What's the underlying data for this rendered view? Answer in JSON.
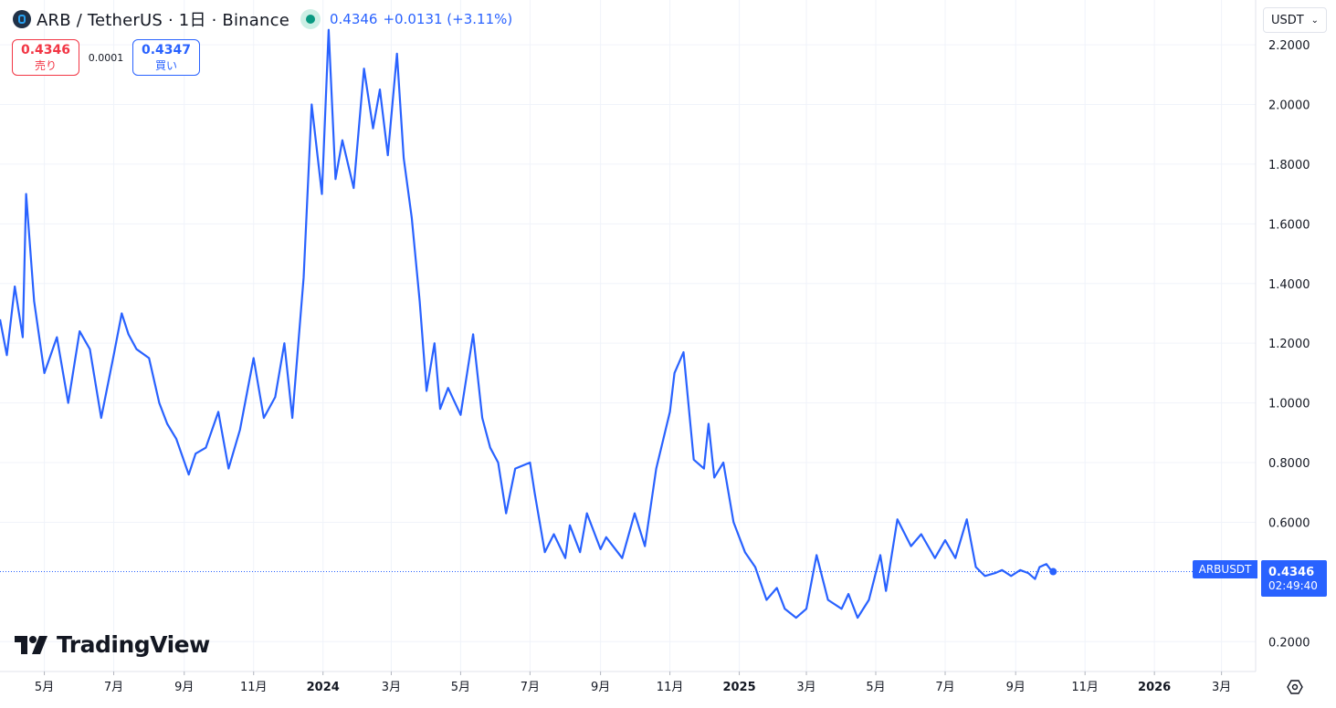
{
  "header": {
    "title": "ARB / TetherUS · 1日 · Binance",
    "price": "0.4346",
    "change": "+0.0131 (+3.11%)"
  },
  "trade": {
    "sell_price": "0.4346",
    "sell_label": "売り",
    "spread": "0.0001",
    "buy_price": "0.4347",
    "buy_label": "買い"
  },
  "currency": {
    "label": "USDT"
  },
  "logo": {
    "text": "TradingView"
  },
  "price_tag": {
    "symbol": "ARBUSDT",
    "price": "0.4346",
    "countdown": "02:49:40"
  },
  "colors": {
    "line": "#2962ff",
    "grid": "#f0f3fa",
    "dotted": "#2962ff"
  },
  "icons": {
    "symbol": "arbitrum-logo-icon",
    "status": "market-open-icon",
    "settings": "settings-icon",
    "chevron": "chevron-down-icon"
  },
  "chart_data": {
    "type": "line",
    "series": [
      {
        "name": "ARBUSDT",
        "x": [
          "2023-03-23",
          "2023-03-29",
          "2023-04-05",
          "2023-04-12",
          "2023-04-15",
          "2023-04-22",
          "2023-05-01",
          "2023-05-12",
          "2023-05-22",
          "2023-06-01",
          "2023-06-10",
          "2023-06-20",
          "2023-07-01",
          "2023-07-08",
          "2023-07-14",
          "2023-07-21",
          "2023-08-01",
          "2023-08-10",
          "2023-08-17",
          "2023-08-25",
          "2023-09-05",
          "2023-09-11",
          "2023-09-20",
          "2023-10-01",
          "2023-10-10",
          "2023-10-20",
          "2023-11-01",
          "2023-11-10",
          "2023-11-20",
          "2023-11-28",
          "2023-12-05",
          "2023-12-15",
          "2023-12-22",
          "2023-12-31",
          "2024-01-06",
          "2024-01-12",
          "2024-01-18",
          "2024-01-28",
          "2024-02-06",
          "2024-02-14",
          "2024-02-20",
          "2024-02-27",
          "2024-03-06",
          "2024-03-12",
          "2024-03-19",
          "2024-03-26",
          "2024-04-01",
          "2024-04-08",
          "2024-04-13",
          "2024-04-20",
          "2024-05-01",
          "2024-05-12",
          "2024-05-20",
          "2024-05-27",
          "2024-06-03",
          "2024-06-10",
          "2024-06-18",
          "2024-07-01",
          "2024-07-05",
          "2024-07-14",
          "2024-07-22",
          "2024-08-01",
          "2024-08-05",
          "2024-08-14",
          "2024-08-20",
          "2024-09-01",
          "2024-09-06",
          "2024-09-20",
          "2024-10-01",
          "2024-10-10",
          "2024-10-20",
          "2024-11-01",
          "2024-11-05",
          "2024-11-13",
          "2024-11-22",
          "2024-12-01",
          "2024-12-05",
          "2024-12-10",
          "2024-12-18",
          "2024-12-27",
          "2025-01-06",
          "2025-01-15",
          "2025-01-25",
          "2025-02-03",
          "2025-02-10",
          "2025-02-20",
          "2025-03-01",
          "2025-03-10",
          "2025-03-20",
          "2025-04-01",
          "2025-04-07",
          "2025-04-15",
          "2025-04-25",
          "2025-05-05",
          "2025-05-10",
          "2025-05-20",
          "2025-06-01",
          "2025-06-10",
          "2025-06-22",
          "2025-07-01",
          "2025-07-10",
          "2025-07-20",
          "2025-07-28",
          "2025-08-05",
          "2025-08-14",
          "2025-08-20",
          "2025-08-28",
          "2025-09-05",
          "2025-09-12",
          "2025-09-18",
          "2025-09-22",
          "2025-09-28",
          "2025-10-04"
        ],
        "values": [
          1.28,
          1.16,
          1.39,
          1.22,
          1.7,
          1.34,
          1.1,
          1.22,
          1.0,
          1.24,
          1.18,
          0.95,
          1.16,
          1.3,
          1.23,
          1.18,
          1.15,
          1.0,
          0.93,
          0.88,
          0.76,
          0.83,
          0.85,
          0.97,
          0.78,
          0.91,
          1.15,
          0.95,
          1.02,
          1.2,
          0.95,
          1.42,
          2.0,
          1.7,
          2.25,
          1.75,
          1.88,
          1.72,
          2.12,
          1.92,
          2.05,
          1.83,
          2.17,
          1.82,
          1.62,
          1.34,
          1.04,
          1.2,
          0.98,
          1.05,
          0.96,
          1.23,
          0.95,
          0.85,
          0.8,
          0.63,
          0.78,
          0.8,
          0.7,
          0.5,
          0.56,
          0.48,
          0.59,
          0.5,
          0.63,
          0.51,
          0.55,
          0.48,
          0.63,
          0.52,
          0.78,
          0.97,
          1.1,
          1.17,
          0.81,
          0.78,
          0.93,
          0.75,
          0.8,
          0.6,
          0.5,
          0.45,
          0.34,
          0.38,
          0.31,
          0.28,
          0.31,
          0.49,
          0.34,
          0.31,
          0.36,
          0.28,
          0.34,
          0.49,
          0.37,
          0.61,
          0.52,
          0.56,
          0.48,
          0.54,
          0.48,
          0.61,
          0.45,
          0.42,
          0.43,
          0.44,
          0.42,
          0.44,
          0.43,
          0.41,
          0.45,
          0.46,
          0.43
        ]
      }
    ],
    "x_ticks": [
      {
        "date": "2023-05-01",
        "label": "5月",
        "bold": false
      },
      {
        "date": "2023-07-01",
        "label": "7月",
        "bold": false
      },
      {
        "date": "2023-09-01",
        "label": "9月",
        "bold": false
      },
      {
        "date": "2023-11-01",
        "label": "11月",
        "bold": false
      },
      {
        "date": "2024-01-01",
        "label": "2024",
        "bold": true
      },
      {
        "date": "2024-03-01",
        "label": "3月",
        "bold": false
      },
      {
        "date": "2024-05-01",
        "label": "5月",
        "bold": false
      },
      {
        "date": "2024-07-01",
        "label": "7月",
        "bold": false
      },
      {
        "date": "2024-09-01",
        "label": "9月",
        "bold": false
      },
      {
        "date": "2024-11-01",
        "label": "11月",
        "bold": false
      },
      {
        "date": "2025-01-01",
        "label": "2025",
        "bold": true
      },
      {
        "date": "2025-03-01",
        "label": "3月",
        "bold": false
      },
      {
        "date": "2025-05-01",
        "label": "5月",
        "bold": false
      },
      {
        "date": "2025-07-01",
        "label": "7月",
        "bold": false
      },
      {
        "date": "2025-09-01",
        "label": "9月",
        "bold": false
      },
      {
        "date": "2025-11-01",
        "label": "11月",
        "bold": false
      },
      {
        "date": "2026-01-01",
        "label": "2026",
        "bold": true
      },
      {
        "date": "2026-03-01",
        "label": "3月",
        "bold": false
      }
    ],
    "y_ticks": [
      0.2,
      0.6,
      0.8,
      1.0,
      1.2,
      1.4,
      1.6,
      1.8,
      2.0,
      2.2
    ],
    "y_tick_labels": [
      "0.2000",
      "0.6000",
      "0.8000",
      "1.0000",
      "1.2000",
      "1.4000",
      "1.6000",
      "1.8000",
      "2.0000",
      "2.2000"
    ],
    "last_value": 0.4346,
    "xlim": [
      "2023-03-23",
      "2026-03-31"
    ],
    "ylim": [
      0.1,
      2.35
    ],
    "grid": true,
    "axis_position": "right"
  }
}
